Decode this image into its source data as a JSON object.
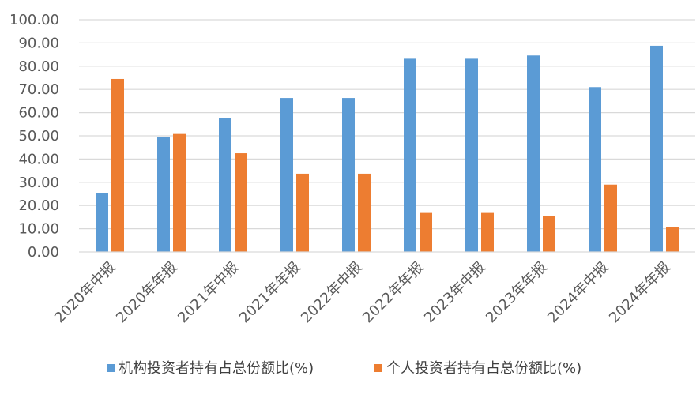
{
  "chart_data": {
    "type": "bar",
    "categories": [
      "2020年中报",
      "2020年年报",
      "2021年中报",
      "2021年年报",
      "2022年中报",
      "2022年年报",
      "2023年中报",
      "2023年年报",
      "2024年中报",
      "2024年年报"
    ],
    "series": [
      {
        "name": "机构投资者持有占总份额比(%)",
        "color": "#5B9BD5",
        "values": [
          25.5,
          49.5,
          57.5,
          66.3,
          66.3,
          83.2,
          83.2,
          84.6,
          71.0,
          88.8
        ]
      },
      {
        "name": "个人投资者持有占总份额比(%)",
        "color": "#ED7D31",
        "values": [
          74.5,
          50.8,
          42.5,
          33.7,
          33.7,
          16.8,
          16.8,
          15.4,
          29.0,
          10.7
        ]
      }
    ],
    "y_ticks": [
      "0.00",
      "10.00",
      "20.00",
      "30.00",
      "40.00",
      "50.00",
      "60.00",
      "70.00",
      "80.00",
      "90.00",
      "100.00"
    ],
    "ylim": [
      0,
      100
    ],
    "grid": true,
    "gridline_color": "#d9d9d9",
    "legend_position": "bottom"
  }
}
